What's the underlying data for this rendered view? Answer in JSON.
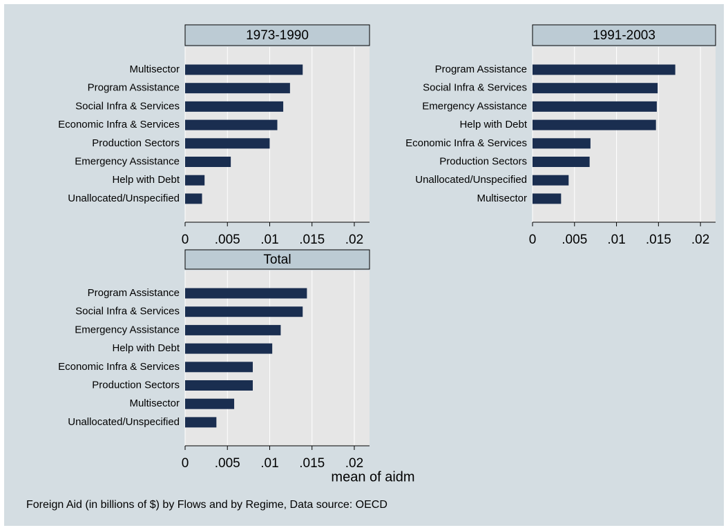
{
  "chart_data": [
    {
      "type": "bar",
      "orientation": "horizontal",
      "title": "1973-1990",
      "categories": [
        "Multisector",
        "Program Assistance",
        "Social Infra & Services",
        "Economic Infra & Services",
        "Production Sectors",
        "Emergency Assistance",
        "Help with Debt",
        "Unallocated/Unspecified"
      ],
      "values": [
        0.0139,
        0.0124,
        0.0116,
        0.0109,
        0.01,
        0.0054,
        0.0023,
        0.002
      ],
      "color": "#1a2e50",
      "xlim": [
        0,
        0.0218
      ],
      "xticks": [
        0,
        {
          "value": 0.005,
          "label": ".005"
        },
        {
          "value": 0.01,
          "label": ".01"
        },
        {
          "value": 0.015,
          "label": ".015"
        },
        {
          "value": 0.02,
          "label": ".02"
        }
      ],
      "grid": true
    },
    {
      "type": "bar",
      "orientation": "horizontal",
      "title": "1991-2003",
      "categories": [
        "Program Assistance",
        "Social Infra & Services",
        "Emergency Assistance",
        "Help with Debt",
        "Economic Infra & Services",
        "Production Sectors",
        "Unallocated/Unspecified",
        "Multisector"
      ],
      "values": [
        0.017,
        0.0149,
        0.0148,
        0.0147,
        0.0069,
        0.0068,
        0.0043,
        0.0034
      ],
      "color": "#1a2e50",
      "xlim": [
        0,
        0.0218
      ],
      "xticks": [
        0,
        {
          "value": 0.005,
          "label": ".005"
        },
        {
          "value": 0.01,
          "label": ".01"
        },
        {
          "value": 0.015,
          "label": ".015"
        },
        {
          "value": 0.02,
          "label": ".02"
        }
      ],
      "grid": true
    },
    {
      "type": "bar",
      "orientation": "horizontal",
      "title": "Total",
      "categories": [
        "Program Assistance",
        "Social Infra & Services",
        "Emergency Assistance",
        "Help with Debt",
        "Economic Infra & Services",
        "Production Sectors",
        "Multisector",
        "Unallocated/Unspecified"
      ],
      "values": [
        0.0144,
        0.0139,
        0.0113,
        0.0103,
        0.008,
        0.008,
        0.0058,
        0.0037
      ],
      "color": "#1a2e50",
      "xlim": [
        0,
        0.0218
      ],
      "xticks": [
        0,
        {
          "value": 0.005,
          "label": ".005"
        },
        {
          "value": 0.01,
          "label": ".01"
        },
        {
          "value": 0.015,
          "label": ".015"
        },
        {
          "value": 0.02,
          "label": ".02"
        }
      ],
      "grid": true
    }
  ],
  "xlabel": "mean of aidm",
  "note": "Foreign Aid (in billions of $) by Flows and by Regime, Data source: OECD"
}
